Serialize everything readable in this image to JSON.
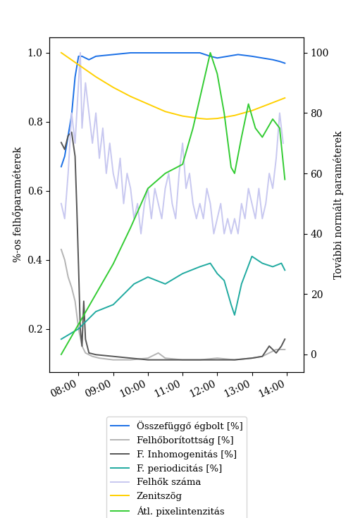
{
  "chart_data": {
    "type": "line",
    "y_label": "%-os felhőparaméterek",
    "y2_label": "További normált paraméterek",
    "xlim": [
      7.16,
      14.49
    ],
    "xticks": [
      {
        "value": 8,
        "label": "08:00"
      },
      {
        "value": 9,
        "label": "09:00"
      },
      {
        "value": 10,
        "label": "10:00"
      },
      {
        "value": 11,
        "label": "11:00"
      },
      {
        "value": 12,
        "label": "12:00"
      },
      {
        "value": 13,
        "label": "13:00"
      },
      {
        "value": 14,
        "label": "14:00"
      }
    ],
    "ylim": [
      0.075,
      1.045
    ],
    "yticks": [
      0.2,
      0.4,
      0.6,
      0.8,
      {
        "value": 1.0,
        "label": "1.0"
      }
    ],
    "y2lim": [
      -5.8,
      105.1
    ],
    "y2ticks": [
      0,
      20,
      40,
      60,
      80,
      100
    ],
    "grid": false,
    "legend": "upper center",
    "series": [
      {
        "name": "Összefüggő égbolt [%]",
        "color": "#1a6fe6",
        "axis": "y",
        "x": [
          7.5,
          7.6,
          7.7,
          7.8,
          7.9,
          8.0,
          8.1,
          8.3,
          8.5,
          9.0,
          9.5,
          10.0,
          10.5,
          11.0,
          11.5,
          11.8,
          12.0,
          12.3,
          12.6,
          13.0,
          13.3,
          13.6,
          13.8,
          13.95
        ],
        "values": [
          0.67,
          0.7,
          0.76,
          0.82,
          0.93,
          0.99,
          0.99,
          0.98,
          0.99,
          0.995,
          1.0,
          1.0,
          1.0,
          1.0,
          1.0,
          0.99,
          0.985,
          0.99,
          0.995,
          0.99,
          0.985,
          0.98,
          0.975,
          0.97
        ],
        "marker": "none",
        "line_style": "solid"
      },
      {
        "name": "Felhőborítottság [%]",
        "color": "#b4b4b4",
        "axis": "y",
        "x": [
          7.5,
          7.6,
          7.7,
          7.8,
          7.9,
          8.0,
          8.1,
          8.2,
          8.4,
          8.6,
          9.0,
          9.5,
          10.0,
          10.3,
          10.5,
          11.0,
          11.5,
          12.0,
          12.5,
          13.0,
          13.3,
          13.5,
          13.7,
          13.95
        ],
        "values": [
          0.43,
          0.4,
          0.35,
          0.32,
          0.28,
          0.2,
          0.15,
          0.13,
          0.12,
          0.115,
          0.11,
          0.11,
          0.115,
          0.13,
          0.115,
          0.11,
          0.11,
          0.115,
          0.11,
          0.115,
          0.12,
          0.13,
          0.14,
          0.14
        ],
        "marker": "none",
        "line_style": "solid"
      },
      {
        "name": "F. Inhomogenitás [%]",
        "color": "#555555",
        "axis": "y",
        "x": [
          7.5,
          7.6,
          7.7,
          7.8,
          7.9,
          7.95,
          8.0,
          8.05,
          8.1,
          8.15,
          8.2,
          8.3,
          8.5,
          9.0,
          9.5,
          10.0,
          10.5,
          11.0,
          11.5,
          12.0,
          12.5,
          13.0,
          13.3,
          13.5,
          13.7,
          13.85,
          13.95
        ],
        "values": [
          0.74,
          0.72,
          0.76,
          0.77,
          0.7,
          0.55,
          0.38,
          0.2,
          0.15,
          0.28,
          0.17,
          0.13,
          0.125,
          0.12,
          0.115,
          0.11,
          0.11,
          0.11,
          0.11,
          0.11,
          0.11,
          0.115,
          0.12,
          0.15,
          0.13,
          0.15,
          0.17
        ],
        "marker": "none",
        "line_style": "solid"
      },
      {
        "name": "F. periodicitás [%]",
        "color": "#20aaa0",
        "axis": "y",
        "x": [
          7.5,
          8.0,
          8.5,
          9.0,
          9.3,
          9.6,
          10.0,
          10.5,
          11.0,
          11.5,
          11.8,
          12.0,
          12.2,
          12.4,
          12.5,
          12.7,
          13.0,
          13.3,
          13.6,
          13.85,
          13.95
        ],
        "values": [
          0.17,
          0.2,
          0.25,
          0.27,
          0.3,
          0.33,
          0.35,
          0.33,
          0.36,
          0.38,
          0.39,
          0.36,
          0.34,
          0.27,
          0.24,
          0.33,
          0.41,
          0.39,
          0.38,
          0.39,
          0.37
        ],
        "marker": "none",
        "line_style": "solid"
      },
      {
        "name": "Felhők száma",
        "color": "#c8c8f0",
        "axis": "y2",
        "x": [
          7.5,
          7.6,
          7.7,
          7.8,
          7.9,
          8.0,
          8.05,
          8.1,
          8.2,
          8.3,
          8.4,
          8.5,
          8.6,
          8.7,
          8.8,
          8.9,
          9.0,
          9.1,
          9.2,
          9.3,
          9.4,
          9.5,
          9.6,
          9.7,
          9.8,
          9.9,
          10.0,
          10.1,
          10.2,
          10.3,
          10.4,
          10.5,
          10.6,
          10.7,
          10.8,
          10.9,
          11.0,
          11.1,
          11.2,
          11.3,
          11.4,
          11.5,
          11.6,
          11.7,
          11.8,
          11.9,
          12.0,
          12.1,
          12.2,
          12.3,
          12.4,
          12.5,
          12.6,
          12.7,
          12.8,
          12.9,
          13.0,
          13.1,
          13.2,
          13.3,
          13.4,
          13.5,
          13.6,
          13.7,
          13.8,
          13.9
        ],
        "values": [
          50,
          45,
          60,
          80,
          70,
          90,
          100,
          75,
          90,
          80,
          70,
          80,
          65,
          75,
          60,
          70,
          60,
          55,
          65,
          50,
          60,
          55,
          45,
          50,
          40,
          50,
          55,
          45,
          55,
          50,
          45,
          55,
          60,
          50,
          45,
          60,
          70,
          55,
          60,
          50,
          45,
          50,
          45,
          55,
          50,
          40,
          45,
          50,
          40,
          45,
          40,
          45,
          40,
          50,
          45,
          55,
          50,
          45,
          55,
          45,
          50,
          60,
          55,
          65,
          80,
          70
        ],
        "marker": "none",
        "line_style": "solid"
      },
      {
        "name": "Zenitszög",
        "color": "#ffd000",
        "axis": "y2",
        "x": [
          7.5,
          8.0,
          8.5,
          9.0,
          9.5,
          10.0,
          10.5,
          11.0,
          11.5,
          11.7,
          12.0,
          12.5,
          13.0,
          13.5,
          13.95
        ],
        "values": [
          100,
          96,
          92,
          88.5,
          85.5,
          83,
          80.5,
          79,
          78.2,
          78,
          78.2,
          79.2,
          80.8,
          83,
          85
        ],
        "marker": "none",
        "line_style": "solid"
      },
      {
        "name": "Átl. pixelintenzitás",
        "color": "#33cc33",
        "axis": "y2",
        "x": [
          7.5,
          8.0,
          8.5,
          9.0,
          9.5,
          10.0,
          10.5,
          11.0,
          11.3,
          11.6,
          11.8,
          12.0,
          12.2,
          12.4,
          12.5,
          12.7,
          12.9,
          13.1,
          13.3,
          13.6,
          13.8,
          13.95
        ],
        "values": [
          0,
          10,
          20,
          30,
          42,
          55,
          60,
          63,
          75,
          90,
          100,
          93,
          80,
          62,
          60,
          72,
          83,
          75,
          72,
          78,
          75,
          58
        ],
        "marker": "none",
        "line_style": "solid"
      }
    ]
  }
}
